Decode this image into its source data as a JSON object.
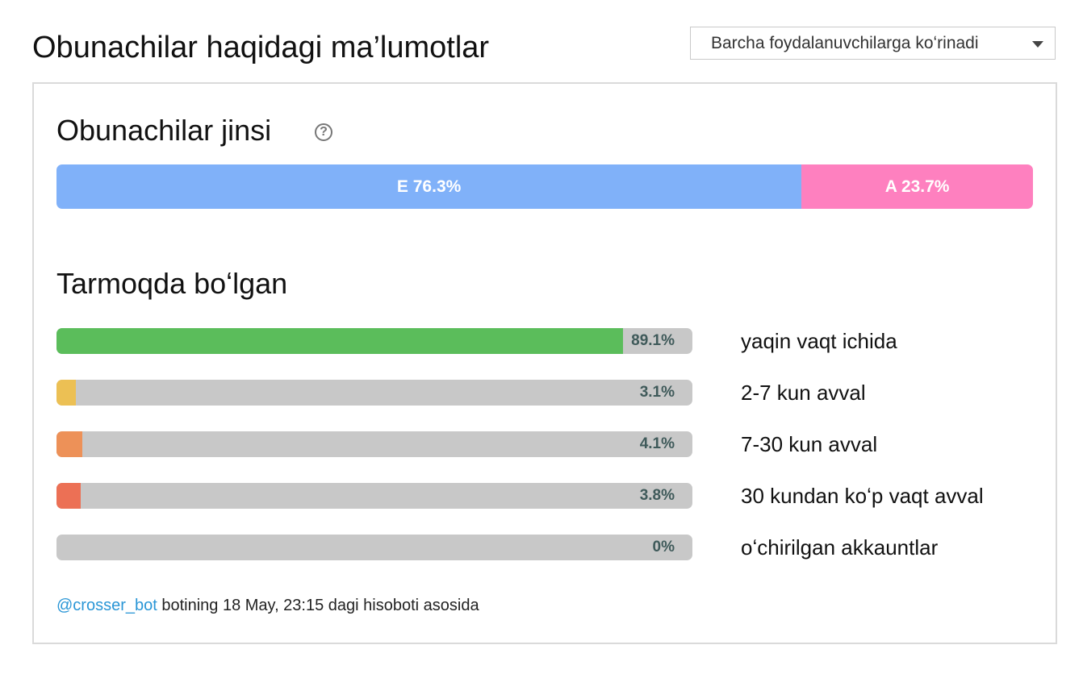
{
  "page_title": "Obunachilar haqidagi ma’lumotlar",
  "visibility_select": {
    "selected": "Barcha foydalanuvchilarga koʻrinadi",
    "icon": "chevron-down-icon"
  },
  "gender": {
    "title": "Obunachilar jinsi",
    "help_icon": "question-circle-icon",
    "segments": [
      {
        "label": "E 76.3%",
        "percent": 76.3,
        "color": "#80b1f9"
      },
      {
        "label": "A 23.7%",
        "percent": 23.7,
        "color": "#fe80bf"
      }
    ]
  },
  "activity": {
    "title": "Tarmoqda boʻlgan",
    "rows": [
      {
        "label": "yaqin vaqt ichida",
        "value": "89.1%",
        "percent": 89.1,
        "color": "#5bbd5b"
      },
      {
        "label": "2-7 kun avval",
        "value": "3.1%",
        "percent": 3.1,
        "color": "#ecc054"
      },
      {
        "label": "7-30 kun avval",
        "value": "4.1%",
        "percent": 4.1,
        "color": "#ed9158"
      },
      {
        "label": "30 kundan koʻp vaqt avval",
        "value": "3.8%",
        "percent": 3.8,
        "color": "#ec7055"
      },
      {
        "label": "oʻchirilgan akkauntlar",
        "value": "0%",
        "percent": 0,
        "color": "#c8c8c8"
      }
    ]
  },
  "footnote": {
    "link": "@crosser_bot",
    "text": " botining 18 May, 23:15 dagi hisoboti asosida"
  }
}
